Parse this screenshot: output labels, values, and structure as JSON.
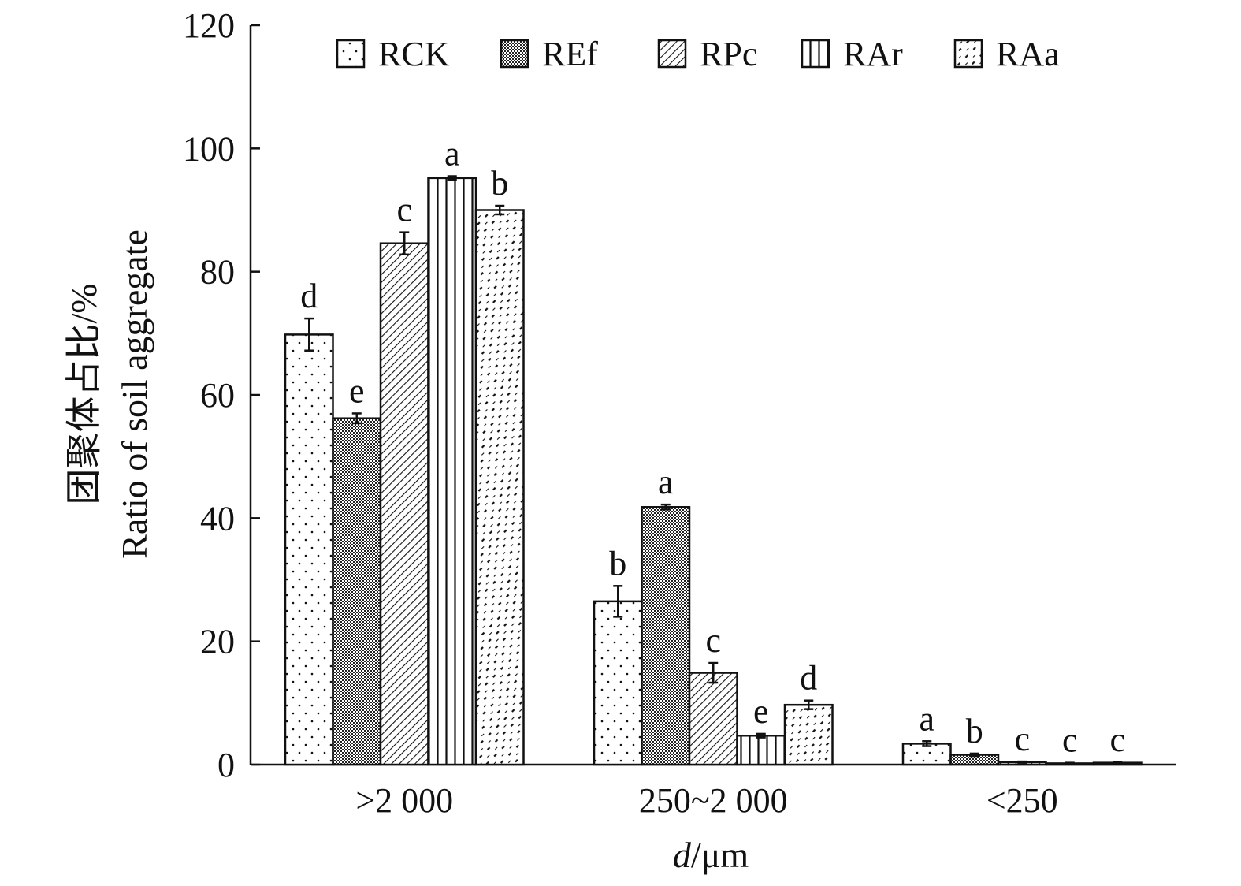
{
  "chart_data": {
    "type": "bar",
    "categories": [
      ">2 000",
      "250~2 000",
      "<250"
    ],
    "series": [
      {
        "name": "RCK",
        "pattern": "dots",
        "values": [
          69.8,
          26.5,
          3.4
        ],
        "errors": [
          2.6,
          2.5,
          0.4
        ],
        "labels": [
          "d",
          "b",
          "a"
        ]
      },
      {
        "name": "REf",
        "pattern": "checker",
        "values": [
          56.2,
          41.8,
          1.6
        ],
        "errors": [
          0.8,
          0.4,
          0.2
        ],
        "labels": [
          "e",
          "a",
          "b"
        ]
      },
      {
        "name": "RPc",
        "pattern": "diagonal",
        "values": [
          84.6,
          14.9,
          0.4
        ],
        "errors": [
          1.8,
          1.6,
          0.1
        ],
        "labels": [
          "c",
          "c",
          "c"
        ]
      },
      {
        "name": "RAr",
        "pattern": "vertical",
        "values": [
          95.2,
          4.7,
          0.2
        ],
        "errors": [
          0.3,
          0.3,
          0.1
        ],
        "labels": [
          "a",
          "e",
          "c"
        ]
      },
      {
        "name": "RAa",
        "pattern": "dashed-diagonal",
        "values": [
          90.0,
          9.7,
          0.3
        ],
        "errors": [
          0.7,
          0.7,
          0.1
        ],
        "labels": [
          "b",
          "d",
          "c"
        ]
      }
    ],
    "xlabel_italic": "d",
    "xlabel_rest": "/μm",
    "ylabel_cn": "团聚体占比/%",
    "ylabel_en": "Ratio of soil aggregate",
    "ylim": [
      0,
      120
    ],
    "yticks": [
      0,
      20,
      40,
      60,
      80,
      100,
      120
    ],
    "grid": false,
    "legend_position": "top"
  },
  "colors": {
    "ink": "#111111",
    "background": "#ffffff"
  }
}
